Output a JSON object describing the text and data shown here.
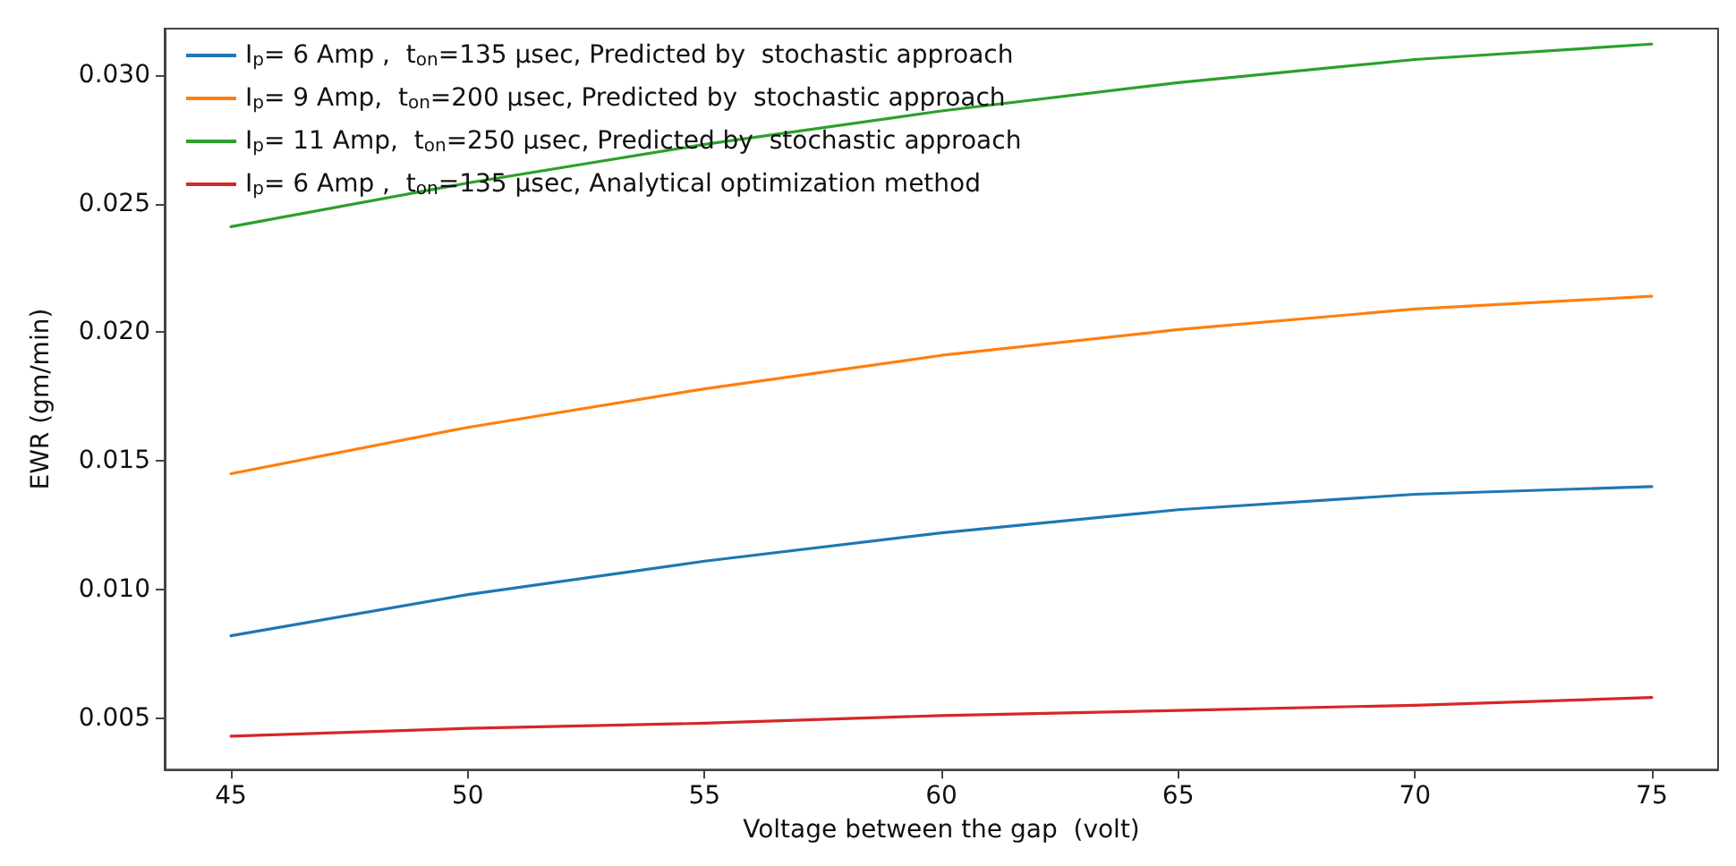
{
  "chart_data": {
    "type": "line",
    "xlabel": "Voltage between the gap  (volt)",
    "ylabel": "EWR (gm/min)",
    "x": [
      45,
      50,
      55,
      60,
      65,
      70,
      75
    ],
    "series": [
      {
        "name": "I$_{p}$= 6 Amp ,  t$_{on}$=135 μsec, Predicted by  stochastic approach",
        "color": "#1f77b4",
        "values": [
          0.0082,
          0.0098,
          0.0111,
          0.0122,
          0.0131,
          0.0137,
          0.014
        ]
      },
      {
        "name": "I$_{p}$= 9 Amp,  t$_{on}$=200 μsec, Predicted by  stochastic approach",
        "color": "#ff7f0e",
        "values": [
          0.0145,
          0.0163,
          0.0178,
          0.0191,
          0.0201,
          0.0209,
          0.0214
        ]
      },
      {
        "name": "I$_{p}$= 11 Amp,  t$_{on}$=250 μsec, Predicted by  stochastic approach",
        "color": "#2ca02c",
        "values": [
          0.0241,
          0.0258,
          0.0273,
          0.0286,
          0.0297,
          0.0306,
          0.0312
        ]
      },
      {
        "name": "I$_{p}$= 6 Amp ,  t$_{on}$=135 μsec, Analytical optimization method",
        "color": "#d62728",
        "values": [
          0.0043,
          0.0046,
          0.0048,
          0.0051,
          0.0053,
          0.0055,
          0.0058
        ]
      }
    ],
    "xlim": [
      43.6,
      76.4
    ],
    "ylim": [
      0.003,
      0.0318
    ],
    "xticks": [
      45,
      50,
      55,
      60,
      65,
      70,
      75
    ],
    "yticks": [
      0.005,
      {
        "value": 0.01,
        "label": "0.010"
      },
      0.015,
      {
        "value": 0.02,
        "label": "0.020"
      },
      0.025,
      {
        "value": 0.03,
        "label": "0.030"
      }
    ],
    "grid": false,
    "legend": "top left",
    "marker": "none",
    "line_style": "solid"
  }
}
